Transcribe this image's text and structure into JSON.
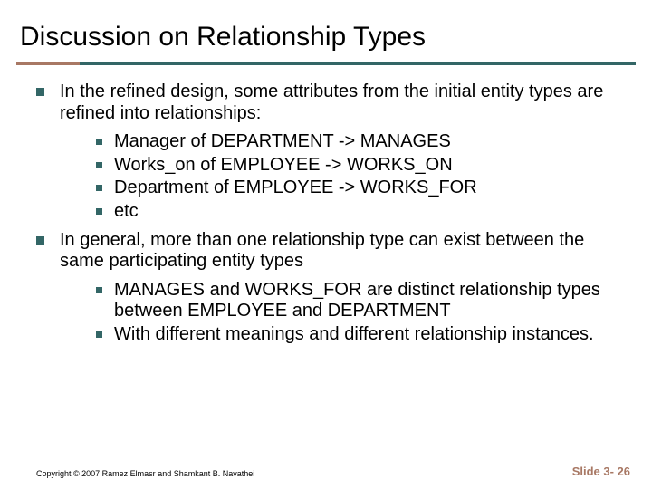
{
  "colors": {
    "bullet": "#336666",
    "ruleLeft": "#a87864",
    "ruleRight": "#336666",
    "slideNum": "#a87864",
    "titleText": "#000000",
    "bodyText": "#000000",
    "background": "#ffffff"
  },
  "layout": {
    "ruleLeftWidthPx": 70
  },
  "title": "Discussion on Relationship Types",
  "bullets": [
    {
      "text": "In the refined design, some attributes from the initial entity types are refined into relationships:",
      "children": [
        "Manager of DEPARTMENT -> MANAGES",
        "Works_on of EMPLOYEE -> WORKS_ON",
        "Department of EMPLOYEE -> WORKS_FOR",
        "etc"
      ]
    },
    {
      "text": "In general, more than one relationship type can exist between the same participating entity types",
      "children": [
        "MANAGES and WORKS_FOR are distinct relationship types between EMPLOYEE and DEPARTMENT",
        "With different meanings and different relationship instances."
      ]
    }
  ],
  "footer": {
    "copyright": "Copyright © 2007 Ramez Elmasr and Shamkant B. Navathei",
    "slideNumber": "Slide 3- 26"
  }
}
